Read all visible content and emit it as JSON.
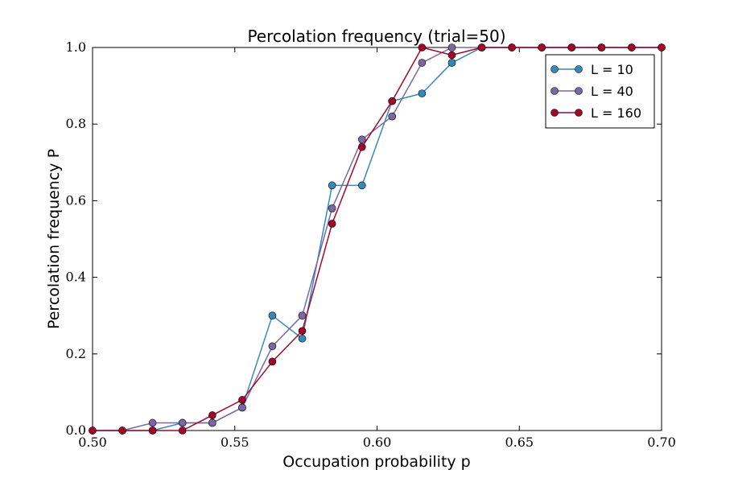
{
  "chart_data": {
    "type": "line",
    "title": "Percolation frequency (trial=50)",
    "xlabel": "Occupation probability p",
    "ylabel": "Percolation frequency P",
    "xlim": [
      0.5,
      0.7
    ],
    "ylim": [
      0.0,
      1.0
    ],
    "xticks": [
      "0.50",
      "0.55",
      "0.60",
      "0.65",
      "0.70"
    ],
    "yticks": [
      "0.0",
      "0.2",
      "0.4",
      "0.6",
      "0.8",
      "1.0"
    ],
    "grid": false,
    "legend_position": "top-right",
    "x": [
      0.5,
      0.5105,
      0.5211,
      0.5316,
      0.5421,
      0.5526,
      0.5632,
      0.5737,
      0.5842,
      0.5947,
      0.6053,
      0.6158,
      0.6263,
      0.6368,
      0.6474,
      0.6579,
      0.6684,
      0.6789,
      0.6895,
      0.7
    ],
    "series": [
      {
        "name": "L = 10",
        "color": "#348abd",
        "values": [
          0.0,
          0.0,
          0.0,
          0.02,
          0.02,
          0.06,
          0.3,
          0.24,
          0.64,
          0.64,
          0.86,
          0.88,
          0.96,
          1.0,
          1.0,
          1.0,
          1.0,
          1.0,
          1.0,
          1.0
        ]
      },
      {
        "name": "L = 40",
        "color": "#7a68a6",
        "values": [
          0.0,
          0.0,
          0.02,
          0.02,
          0.02,
          0.06,
          0.22,
          0.3,
          0.58,
          0.76,
          0.82,
          0.96,
          1.0,
          1.0,
          1.0,
          1.0,
          1.0,
          1.0,
          1.0,
          1.0
        ]
      },
      {
        "name": "L = 160",
        "color": "#a60628",
        "values": [
          0.0,
          0.0,
          0.0,
          0.0,
          0.04,
          0.08,
          0.18,
          0.26,
          0.54,
          0.74,
          0.86,
          1.0,
          0.98,
          1.0,
          1.0,
          1.0,
          1.0,
          1.0,
          1.0,
          1.0
        ]
      }
    ]
  }
}
